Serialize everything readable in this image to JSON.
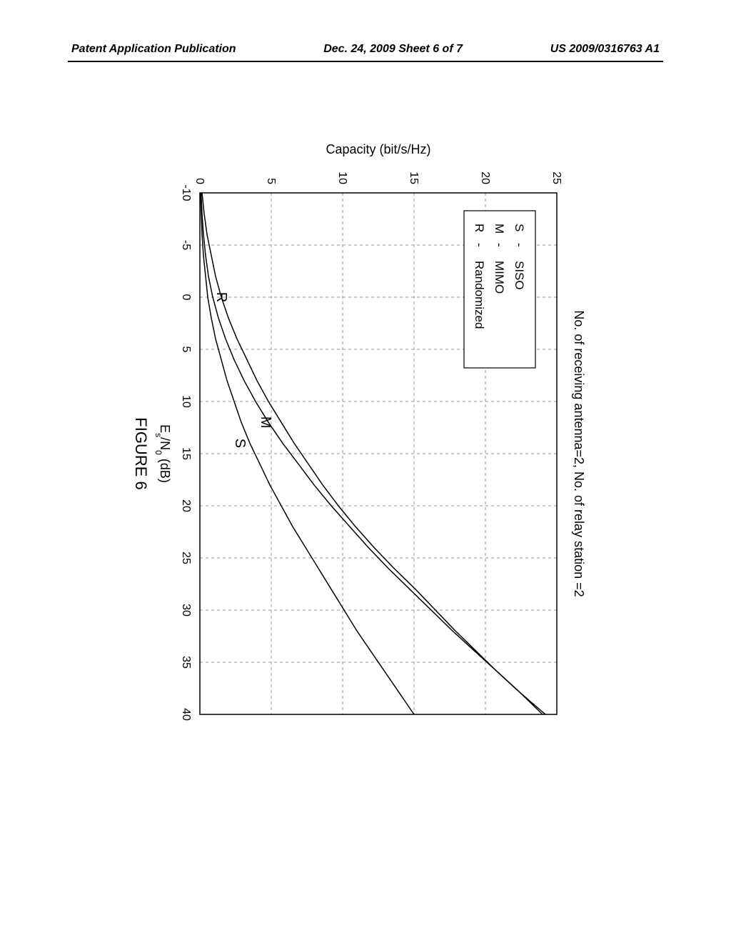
{
  "header": {
    "left": "Patent Application Publication",
    "center": "Dec. 24, 2009  Sheet 6 of 7",
    "right": "US 2009/0316763 A1"
  },
  "chart": {
    "type": "line",
    "title": "No. of receiving antenna=2, No. of relay station =2",
    "title_fontsize": 18,
    "xlabel": "Eₛ/N₀ (dB)",
    "ylabel": "Capacity (bit/s/Hz)",
    "label_fontsize": 18,
    "figure_label": "FIGURE 6",
    "xlim": [
      -10,
      40
    ],
    "ylim": [
      0,
      25
    ],
    "xticks": [
      -10,
      -5,
      0,
      5,
      10,
      15,
      20,
      25,
      30,
      35,
      40
    ],
    "yticks": [
      0,
      5,
      10,
      15,
      20,
      25
    ],
    "background_color": "#ffffff",
    "grid_color": "#999999",
    "grid_dash": "4,4",
    "axis_color": "#000000",
    "line_color": "#000000",
    "line_width": 1.5,
    "legend": {
      "position": "upper-left",
      "items": [
        {
          "key": "S",
          "label": "SISO"
        },
        {
          "key": "M",
          "label": "MIMO"
        },
        {
          "key": "R",
          "label": "Randomized"
        }
      ],
      "fontsize": 17
    },
    "curve_labels": [
      {
        "text": "R",
        "x": 0,
        "y": 1.2
      },
      {
        "text": "M",
        "x": 12,
        "y": 4.3
      },
      {
        "text": "S",
        "x": 14,
        "y": 2.5
      }
    ],
    "series": {
      "S": [
        [
          -10,
          0.05
        ],
        [
          -8,
          0.1
        ],
        [
          -6,
          0.15
        ],
        [
          -4,
          0.25
        ],
        [
          -2,
          0.4
        ],
        [
          0,
          0.55
        ],
        [
          2,
          0.8
        ],
        [
          4,
          1.1
        ],
        [
          6,
          1.5
        ],
        [
          8,
          1.9
        ],
        [
          10,
          2.4
        ],
        [
          12,
          2.9
        ],
        [
          14,
          3.5
        ],
        [
          16,
          4.2
        ],
        [
          18,
          4.9
        ],
        [
          20,
          5.7
        ],
        [
          22,
          6.5
        ],
        [
          24,
          7.4
        ],
        [
          26,
          8.3
        ],
        [
          28,
          9.2
        ],
        [
          30,
          10.1
        ],
        [
          32,
          11.0
        ],
        [
          34,
          12.0
        ],
        [
          36,
          13.0
        ],
        [
          38,
          14.0
        ],
        [
          40,
          15.0
        ]
      ],
      "M": [
        [
          -10,
          0.08
        ],
        [
          -8,
          0.15
        ],
        [
          -6,
          0.25
        ],
        [
          -4,
          0.4
        ],
        [
          -2,
          0.6
        ],
        [
          0,
          0.9
        ],
        [
          2,
          1.3
        ],
        [
          4,
          1.8
        ],
        [
          6,
          2.4
        ],
        [
          8,
          3.1
        ],
        [
          10,
          3.9
        ],
        [
          12,
          4.8
        ],
        [
          14,
          5.8
        ],
        [
          16,
          6.9
        ],
        [
          18,
          8.0
        ],
        [
          20,
          9.2
        ],
        [
          22,
          10.5
        ],
        [
          24,
          11.8
        ],
        [
          26,
          13.2
        ],
        [
          28,
          14.7
        ],
        [
          30,
          16.2
        ],
        [
          32,
          17.7
        ],
        [
          34,
          19.3
        ],
        [
          36,
          20.9
        ],
        [
          38,
          22.5
        ],
        [
          40,
          24.2
        ]
      ],
      "R": [
        [
          -10,
          0.15
        ],
        [
          -8,
          0.3
        ],
        [
          -6,
          0.5
        ],
        [
          -4,
          0.8
        ],
        [
          -2,
          1.1
        ],
        [
          0,
          1.5
        ],
        [
          2,
          2.0
        ],
        [
          4,
          2.6
        ],
        [
          6,
          3.3
        ],
        [
          8,
          4.0
        ],
        [
          10,
          4.8
        ],
        [
          12,
          5.7
        ],
        [
          14,
          6.6
        ],
        [
          16,
          7.6
        ],
        [
          18,
          8.6
        ],
        [
          20,
          9.7
        ],
        [
          22,
          10.9
        ],
        [
          24,
          12.2
        ],
        [
          26,
          13.6
        ],
        [
          28,
          15.1
        ],
        [
          30,
          16.5
        ],
        [
          32,
          17.9
        ],
        [
          34,
          19.4
        ],
        [
          36,
          20.9
        ],
        [
          38,
          22.5
        ],
        [
          40,
          24.0
        ]
      ]
    }
  }
}
